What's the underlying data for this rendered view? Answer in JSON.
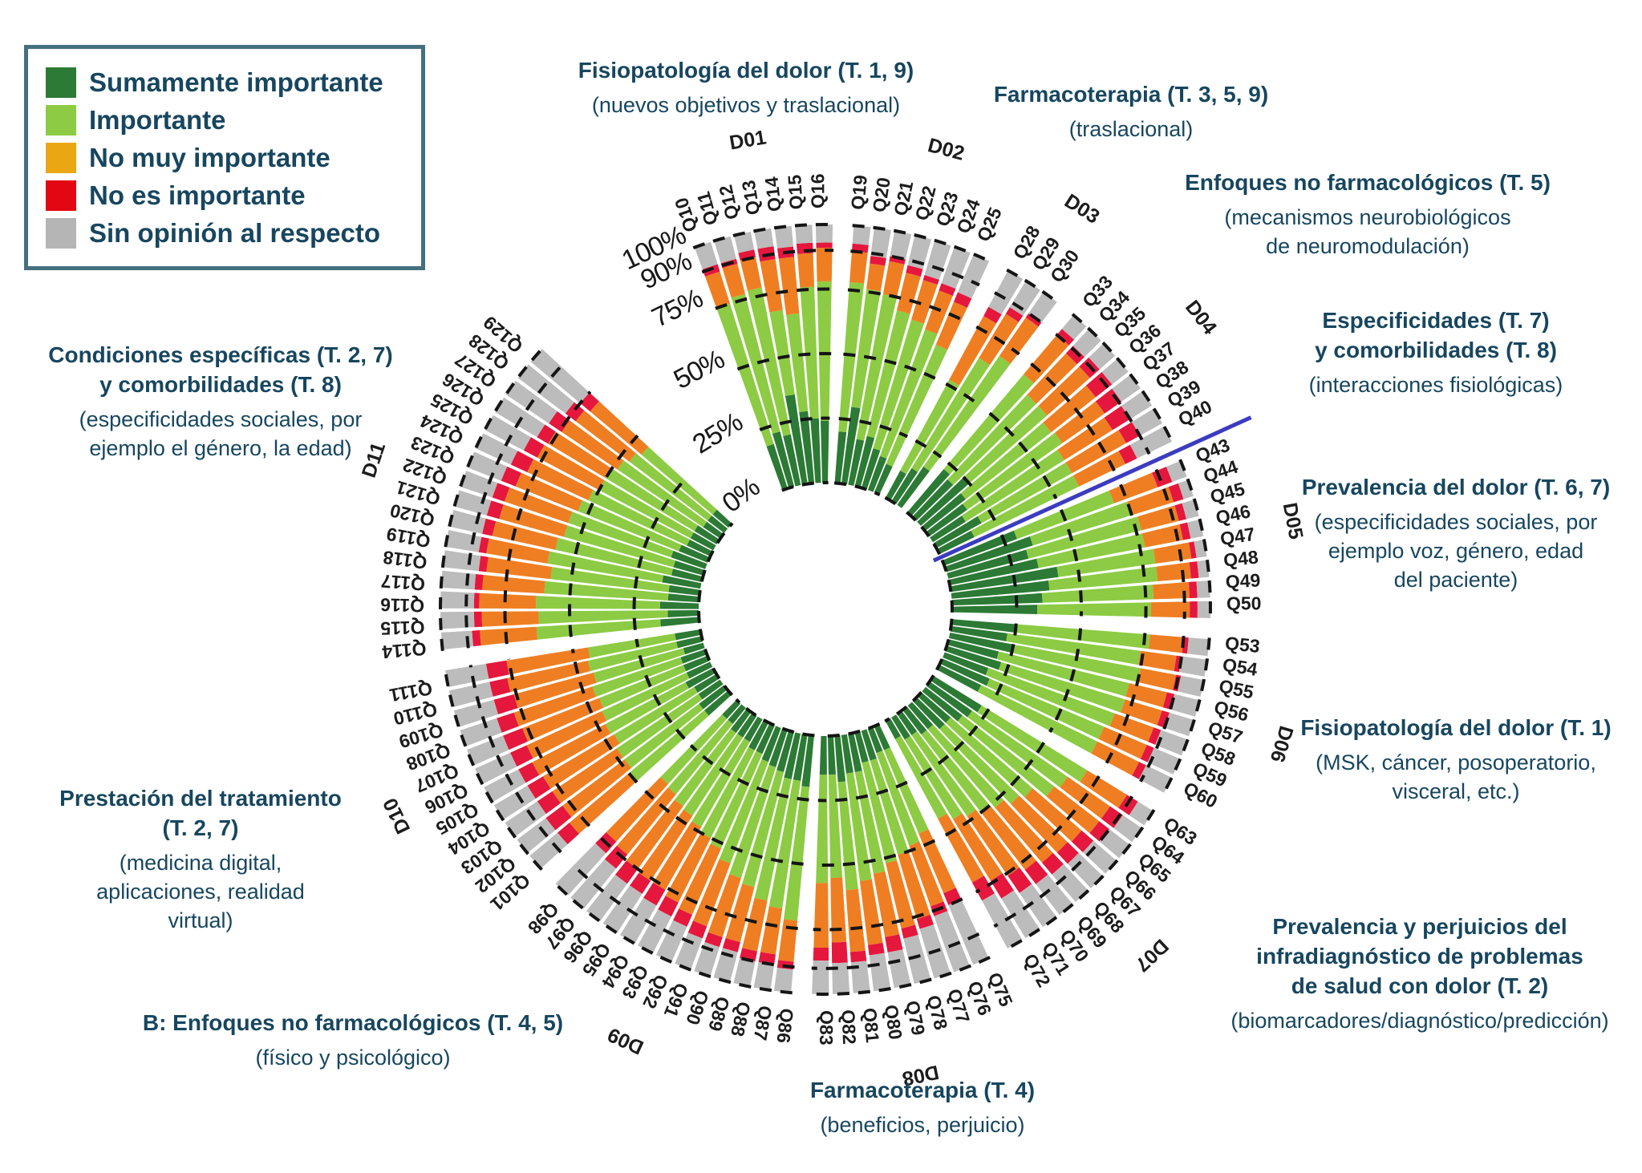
{
  "legend": {
    "items": [
      {
        "label": "Sumamente importante",
        "color": "#2c7a35"
      },
      {
        "label": "Importante",
        "color": "#8ccb43"
      },
      {
        "label": "No muy importante",
        "color": "#eaa713"
      },
      {
        "label": "No es importante",
        "color": "#e30613"
      },
      {
        "label": "Sin opinión al respecto",
        "color": "#b5b5b5"
      }
    ]
  },
  "annotations": [
    {
      "title": "Fisiopatología del dolor (T. 1, 9)",
      "sub": "(nuevos objetivos y traslacional)"
    },
    {
      "title": "Farmacoterapia (T. 3, 5, 9)",
      "sub": "(traslacional)"
    },
    {
      "title": "Enfoques no farmacológicos (T. 5)",
      "sub": "(mecanismos neurobiológicos\nde neuromodulación)"
    },
    {
      "title": "Especificidades (T. 7)\ny comorbilidades (T. 8)",
      "sub": "(interacciones fisiológicas)"
    },
    {
      "title": "Prevalencia del dolor (T. 6, 7)",
      "sub": "(especificidades sociales, por\nejemplo voz, género, edad\ndel paciente)"
    },
    {
      "title": "Fisiopatología del dolor (T. 1)",
      "sub": "(MSK, cáncer, posoperatorio,\nvisceral, etc.)"
    },
    {
      "title": "Prevalencia y perjuicios del\ninfradiagnóstico de problemas\nde salud con dolor (T. 2)",
      "sub": "(biomarcadores/diagnóstico/predicción)"
    },
    {
      "title": "Farmacoterapia (T. 4)",
      "sub": "(beneficios, perjuicio)"
    },
    {
      "title": "B: Enfoques no farmacológicos (T. 4, 5)",
      "sub": "(físico y psicológico)"
    },
    {
      "title": "Prestación del tratamiento\n(T. 2, 7)",
      "sub": "(medicina digital,\naplicaciones, realidad\nvirtual)"
    },
    {
      "title": "Condiciones específicas (T. 2, 7)\ny comorbilidades (T. 8)",
      "sub": "(especificidades sociales, por\nejemplo el género, la edad)"
    }
  ],
  "chart_data": {
    "type": "bar",
    "subtype": "circular-stacked-percentage",
    "title": "",
    "units": "percent of respondents",
    "ylim": [
      0,
      100
    ],
    "grid": "dashed-rings",
    "legend_position": "top-left",
    "categories": [
      "Sumamente importante",
      "Importante",
      "No muy importante",
      "No es importante",
      "Sin opinión al respecto"
    ],
    "colors": [
      "#2c7a35",
      "#8ccb43",
      "#ef7e22",
      "#e5173d",
      "#bcbcbc"
    ],
    "radial_ticks": [
      {
        "label": "0%",
        "pct": 0,
        "label_angle": -36.5
      },
      {
        "label": "25%",
        "pct": 25,
        "label_angle": -31.5
      },
      {
        "label": "50%",
        "pct": 50,
        "label_angle": -27.8
      },
      {
        "label": "75%",
        "pct": 75,
        "label_angle": -26.2
      },
      {
        "label": "90%",
        "pct": 90,
        "label_angle": -25.2
      },
      {
        "label": "100%",
        "pct": 100,
        "label_angle": -25.4
      }
    ],
    "separator": {
      "after_question": "Q40",
      "color": "#3c3cc0"
    },
    "groups": [
      {
        "id": "D01",
        "questions": [
          "Q10",
          "Q11",
          "Q12",
          "Q13",
          "Q14",
          "Q15",
          "Q16"
        ],
        "values": [
          [
            18,
            57,
            13,
            3,
            9
          ],
          [
            22,
            55,
            12,
            2,
            9
          ],
          [
            20,
            58,
            12,
            3,
            7
          ],
          [
            35,
            33,
            20,
            5,
            7
          ],
          [
            28,
            38,
            22,
            4,
            8
          ],
          [
            25,
            51,
            13,
            4,
            7
          ],
          [
            24,
            54,
            13,
            2,
            7
          ]
        ]
      },
      {
        "id": "D02",
        "questions": [
          "Q19",
          "Q20",
          "Q21",
          "Q22",
          "Q23",
          "Q24",
          "Q25"
        ],
        "values": [
          [
            20,
            58,
            12,
            3,
            7
          ],
          [
            30,
            46,
            10,
            3,
            11
          ],
          [
            18,
            57,
            13,
            2,
            10
          ],
          [
            20,
            50,
            15,
            3,
            12
          ],
          [
            16,
            52,
            16,
            2,
            14
          ],
          [
            14,
            52,
            16,
            3,
            15
          ],
          [
            12,
            50,
            18,
            4,
            16
          ]
        ]
      },
      {
        "id": "D03",
        "questions": [
          "Q28",
          "Q29",
          "Q30"
        ],
        "values": [
          [
            12,
            40,
            28,
            4,
            16
          ],
          [
            15,
            50,
            20,
            3,
            12
          ],
          [
            18,
            52,
            18,
            2,
            10
          ]
        ]
      },
      {
        "id": "D04",
        "questions": [
          "Q33",
          "Q34",
          "Q35",
          "Q36",
          "Q37",
          "Q38",
          "Q39",
          "Q40"
        ],
        "values": [
          [
            22,
            48,
            20,
            3,
            7
          ],
          [
            20,
            45,
            22,
            4,
            9
          ],
          [
            25,
            40,
            22,
            5,
            8
          ],
          [
            20,
            42,
            22,
            8,
            8
          ],
          [
            18,
            45,
            20,
            8,
            9
          ],
          [
            15,
            45,
            22,
            8,
            10
          ],
          [
            20,
            40,
            24,
            6,
            10
          ],
          [
            15,
            45,
            20,
            5,
            15
          ]
        ]
      },
      {
        "id": "D05",
        "questions": [
          "Q43",
          "Q44",
          "Q45",
          "Q46",
          "Q47",
          "Q48",
          "Q49",
          "Q50"
        ],
        "values": [
          [
            30,
            40,
            18,
            6,
            6
          ],
          [
            35,
            40,
            17,
            4,
            4
          ],
          [
            32,
            45,
            15,
            3,
            5
          ],
          [
            35,
            42,
            15,
            3,
            5
          ],
          [
            42,
            38,
            14,
            2,
            4
          ],
          [
            38,
            42,
            13,
            3,
            4
          ],
          [
            35,
            43,
            14,
            3,
            5
          ],
          [
            33,
            44,
            15,
            3,
            5
          ]
        ]
      },
      {
        "id": "D06",
        "questions": [
          "Q53",
          "Q54",
          "Q55",
          "Q56",
          "Q57",
          "Q58",
          "Q59",
          "Q60"
        ],
        "values": [
          [
            25,
            52,
            13,
            2,
            8
          ],
          [
            22,
            52,
            14,
            2,
            10
          ],
          [
            25,
            50,
            14,
            2,
            9
          ],
          [
            20,
            52,
            15,
            3,
            10
          ],
          [
            22,
            50,
            15,
            3,
            10
          ],
          [
            18,
            52,
            16,
            3,
            11
          ],
          [
            20,
            48,
            18,
            3,
            11
          ],
          [
            18,
            50,
            18,
            3,
            11
          ]
        ]
      },
      {
        "id": "D07",
        "questions": [
          "Q63",
          "Q64",
          "Q65",
          "Q66",
          "Q67",
          "Q68",
          "Q69",
          "Q70",
          "Q71",
          "Q72"
        ],
        "values": [
          [
            22,
            48,
            18,
            5,
            7
          ],
          [
            20,
            45,
            20,
            6,
            9
          ],
          [
            18,
            45,
            22,
            5,
            10
          ],
          [
            15,
            42,
            25,
            6,
            12
          ],
          [
            15,
            40,
            26,
            6,
            13
          ],
          [
            12,
            40,
            28,
            6,
            14
          ],
          [
            12,
            38,
            28,
            7,
            15
          ],
          [
            10,
            38,
            28,
            8,
            16
          ],
          [
            10,
            36,
            28,
            8,
            18
          ],
          [
            8,
            35,
            28,
            8,
            21
          ]
        ]
      },
      {
        "id": "D08",
        "questions": [
          "Q75",
          "Q76",
          "Q77",
          "Q78",
          "Q79",
          "Q80",
          "Q81",
          "Q82",
          "Q83"
        ],
        "values": [
          [
            10,
            35,
            25,
            5,
            25
          ],
          [
            10,
            38,
            25,
            4,
            23
          ],
          [
            12,
            38,
            26,
            4,
            20
          ],
          [
            12,
            40,
            26,
            4,
            18
          ],
          [
            15,
            40,
            25,
            6,
            14
          ],
          [
            15,
            42,
            25,
            4,
            14
          ],
          [
            18,
            42,
            24,
            4,
            12
          ],
          [
            15,
            40,
            25,
            8,
            12
          ],
          [
            15,
            42,
            25,
            5,
            13
          ]
        ]
      },
      {
        "id": "D09",
        "questions": [
          "Q86",
          "Q87",
          "Q88",
          "Q89",
          "Q90",
          "Q91",
          "Q92",
          "Q93",
          "Q94",
          "Q95",
          "Q96",
          "Q97",
          "Q98"
        ],
        "values": [
          [
            20,
            52,
            16,
            3,
            9
          ],
          [
            18,
            50,
            18,
            4,
            10
          ],
          [
            18,
            48,
            20,
            4,
            10
          ],
          [
            16,
            46,
            22,
            4,
            12
          ],
          [
            15,
            45,
            24,
            4,
            12
          ],
          [
            14,
            42,
            26,
            5,
            13
          ],
          [
            12,
            40,
            28,
            5,
            15
          ],
          [
            12,
            38,
            28,
            6,
            16
          ],
          [
            10,
            38,
            28,
            7,
            17
          ],
          [
            10,
            36,
            30,
            6,
            18
          ],
          [
            10,
            35,
            30,
            7,
            18
          ],
          [
            8,
            35,
            30,
            7,
            20
          ],
          [
            8,
            34,
            30,
            6,
            22
          ]
        ]
      },
      {
        "id": "D10",
        "questions": [
          "Q101",
          "Q102",
          "Q103",
          "Q104",
          "Q105",
          "Q106",
          "Q107",
          "Q108",
          "Q109",
          "Q110",
          "Q111"
        ],
        "values": [
          [
            12,
            38,
            30,
            6,
            14
          ],
          [
            12,
            36,
            30,
            8,
            14
          ],
          [
            10,
            38,
            30,
            7,
            15
          ],
          [
            10,
            36,
            32,
            7,
            15
          ],
          [
            12,
            35,
            32,
            6,
            15
          ],
          [
            10,
            36,
            32,
            7,
            15
          ],
          [
            10,
            35,
            32,
            8,
            15
          ],
          [
            10,
            36,
            32,
            7,
            15
          ],
          [
            8,
            36,
            32,
            8,
            16
          ],
          [
            10,
            35,
            32,
            7,
            16
          ],
          [
            10,
            34,
            32,
            8,
            16
          ]
        ]
      },
      {
        "id": "D11",
        "questions": [
          "Q114",
          "Q115",
          "Q116",
          "Q117",
          "Q118",
          "Q119",
          "Q120",
          "Q121",
          "Q122",
          "Q123",
          "Q124",
          "Q125",
          "Q126",
          "Q127",
          "Q128",
          "Q129"
        ],
        "values": [
          [
            15,
            48,
            22,
            3,
            12
          ],
          [
            12,
            50,
            22,
            3,
            13
          ],
          [
            15,
            48,
            22,
            2,
            13
          ],
          [
            12,
            48,
            24,
            3,
            13
          ],
          [
            12,
            46,
            25,
            3,
            14
          ],
          [
            15,
            45,
            24,
            3,
            13
          ],
          [
            12,
            46,
            25,
            4,
            13
          ],
          [
            12,
            44,
            26,
            5,
            13
          ],
          [
            14,
            42,
            26,
            5,
            13
          ],
          [
            12,
            42,
            26,
            6,
            14
          ],
          [
            10,
            42,
            26,
            7,
            15
          ],
          [
            10,
            40,
            27,
            6,
            17
          ],
          [
            10,
            40,
            26,
            5,
            19
          ],
          [
            8,
            40,
            26,
            6,
            20
          ],
          [
            8,
            38,
            26,
            5,
            23
          ],
          [
            8,
            36,
            26,
            5,
            25
          ]
        ]
      }
    ]
  }
}
